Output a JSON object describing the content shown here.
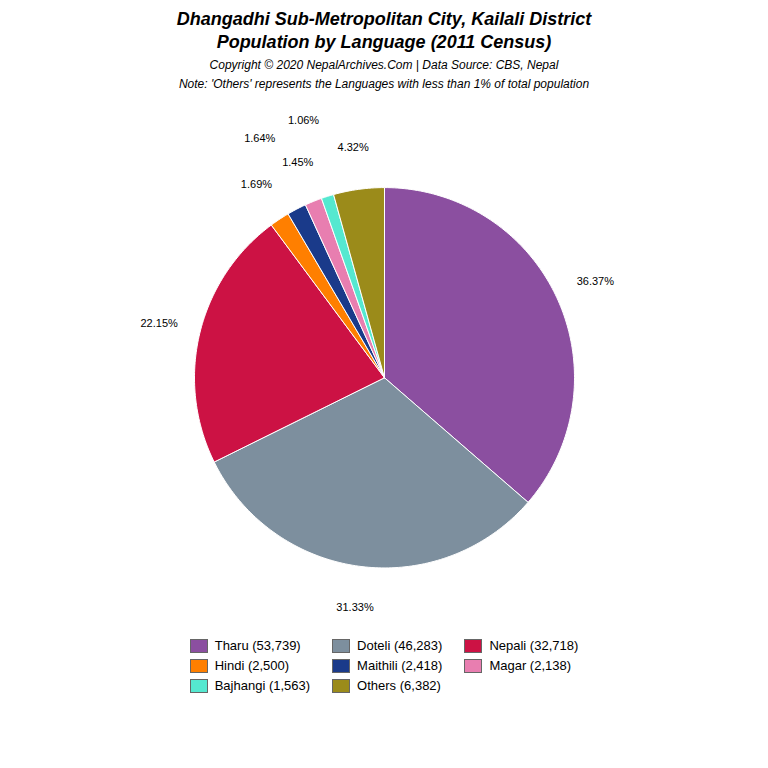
{
  "chart_data": {
    "type": "pie",
    "title": [
      "Dhangadhi Sub-Metropolitan City, Kailali District",
      "Population by Language (2011 Census)"
    ],
    "subtitle": "Copyright © 2020 NepalArchives.Com | Data Source: CBS, Nepal",
    "annotations": [
      "Note: 'Others' represents the Languages with less than 1% of total population"
    ],
    "categories": [
      "Tharu (53,739)",
      "Doteli (46,283)",
      "Nepali (32,718)",
      "Hindi (2,500)",
      "Maithili (2,418)",
      "Magar (2,138)",
      "Bajhangi (1,563)",
      "Others (6,382)"
    ],
    "values": [
      36.37,
      31.33,
      22.15,
      1.69,
      1.64,
      1.45,
      1.06,
      4.32
    ],
    "value_labels": [
      "36.37%",
      "31.33%",
      "22.15%",
      "1.69%",
      "1.64%",
      "1.45%",
      "1.06%",
      "4.32%"
    ],
    "colors": [
      "#8B4FA0",
      "#7D8F9E",
      "#CC1244",
      "#FF7F00",
      "#1A3A8A",
      "#E87EB0",
      "#55E8D0",
      "#9B8B1A"
    ],
    "data_labels": true,
    "legend": "bottom"
  }
}
